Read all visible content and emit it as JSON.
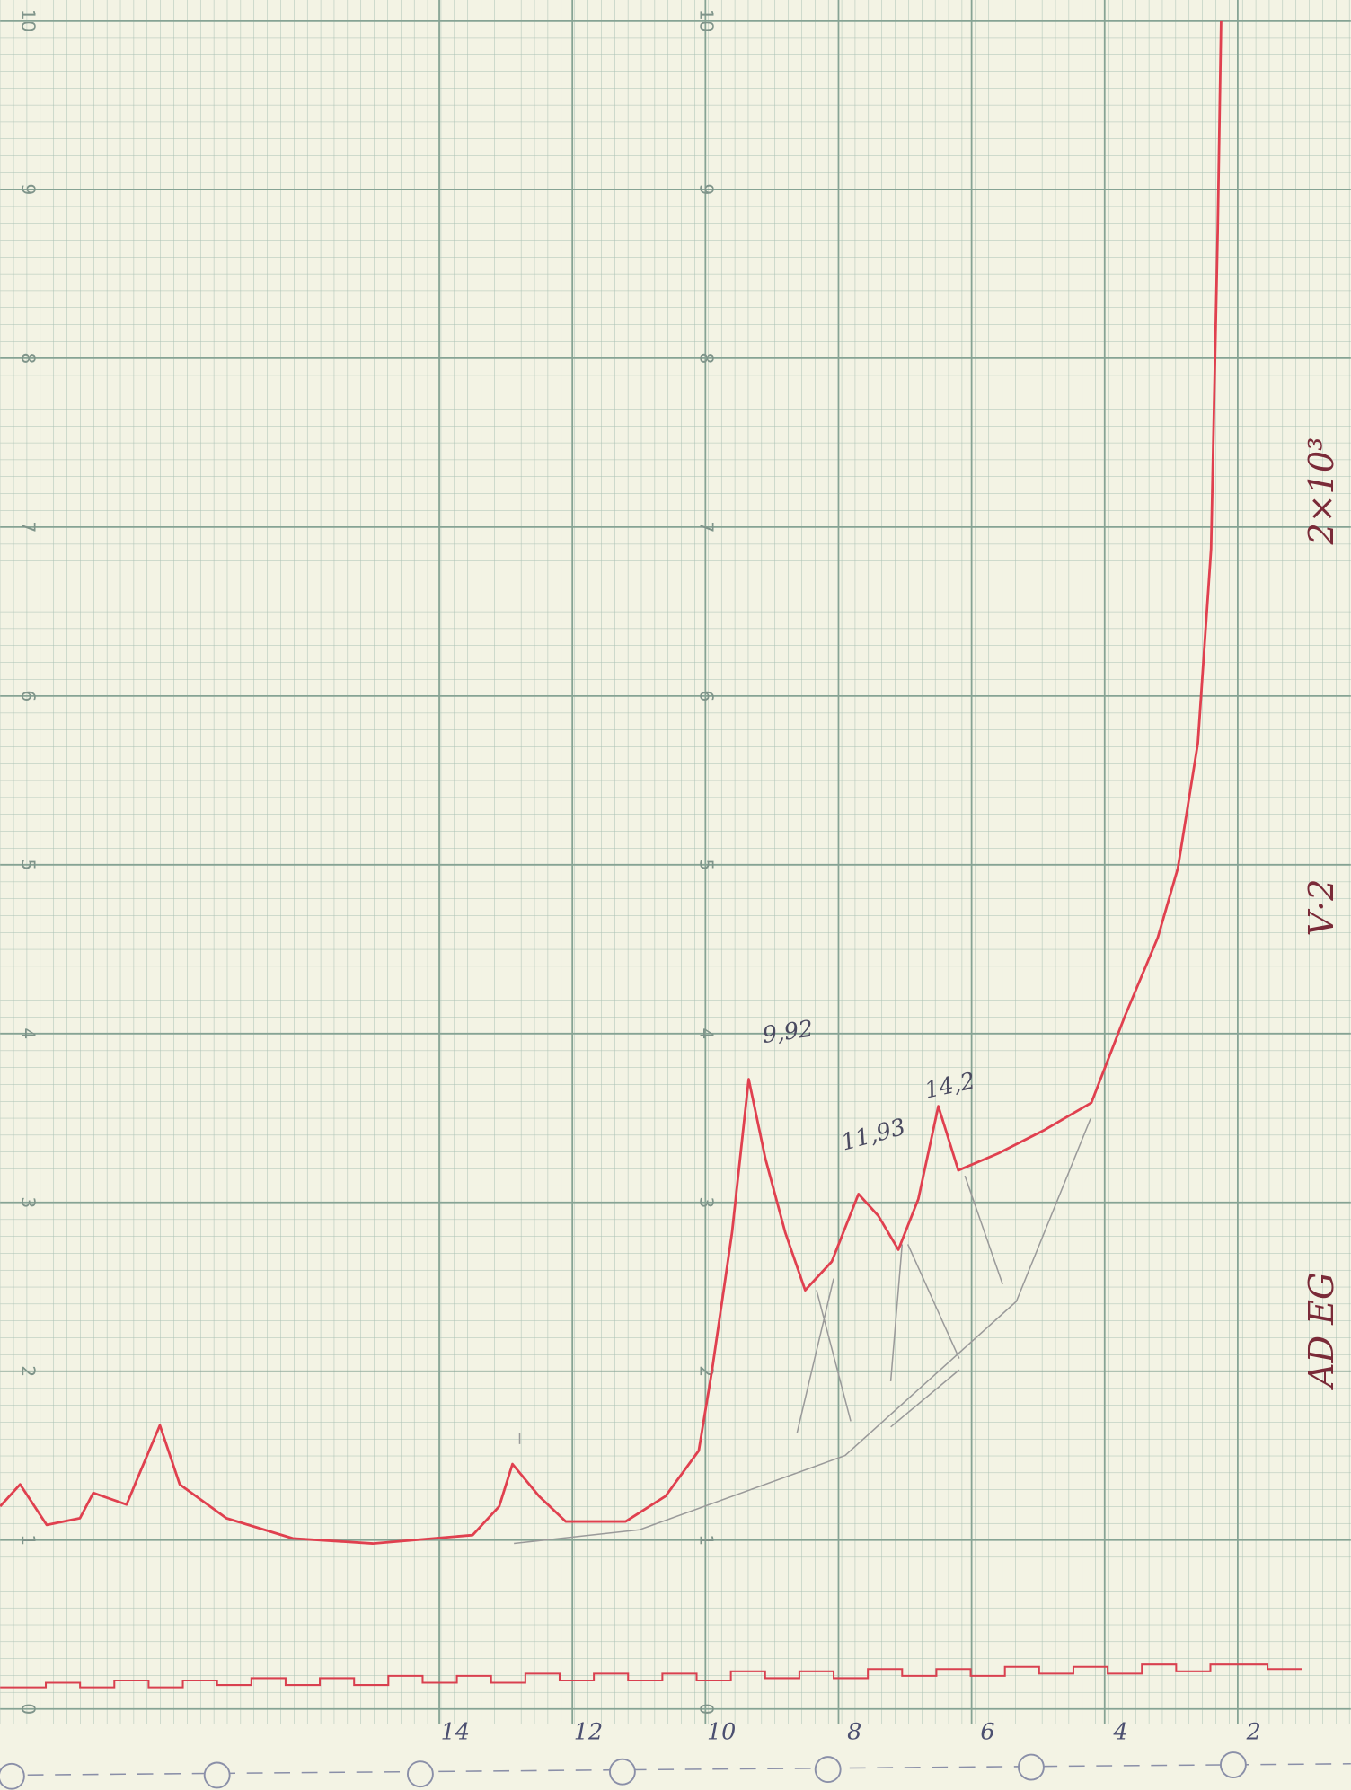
{
  "chart_data": {
    "type": "line",
    "xlim": [
      20.6,
      0.3
    ],
    "ylim": [
      0,
      10
    ],
    "xticks": [
      14,
      12,
      10,
      8,
      6,
      4,
      2
    ],
    "yticks": [
      0,
      1,
      2,
      3,
      4,
      5,
      6,
      7,
      8,
      9,
      10
    ],
    "grid": true,
    "series": [
      {
        "color": "#e0404f",
        "x": [
          20.6,
          20.3,
          19.9,
          19.4,
          19.2,
          18.7,
          18.5,
          18.2,
          17.9,
          17.2,
          16.2,
          15.0,
          13.5,
          13.1,
          12.9,
          12.5,
          12.1,
          11.2,
          10.6,
          10.1,
          9.9,
          9.6,
          9.35,
          9.1,
          8.8,
          8.5,
          8.1,
          7.7,
          7.4,
          7.1,
          6.8,
          6.5,
          6.2,
          5.6,
          4.9,
          4.2,
          3.7,
          3.2,
          2.9,
          2.6,
          2.4,
          2.3,
          2.25
        ],
        "values": [
          1.2,
          1.33,
          1.09,
          1.13,
          1.28,
          1.21,
          1.4,
          1.68,
          1.33,
          1.13,
          1.01,
          0.98,
          1.03,
          1.2,
          1.45,
          1.26,
          1.11,
          1.11,
          1.26,
          1.53,
          2.01,
          2.82,
          3.73,
          3.26,
          2.82,
          2.48,
          2.65,
          3.05,
          2.92,
          2.72,
          3.02,
          3.57,
          3.19,
          3.29,
          3.43,
          3.59,
          4.1,
          4.57,
          4.98,
          5.72,
          6.87,
          8.76,
          10
        ]
      }
    ],
    "annotations": [
      "9,92",
      "11,93",
      "14,2",
      "2×10³",
      "V·2",
      "AD EG"
    ]
  }
}
